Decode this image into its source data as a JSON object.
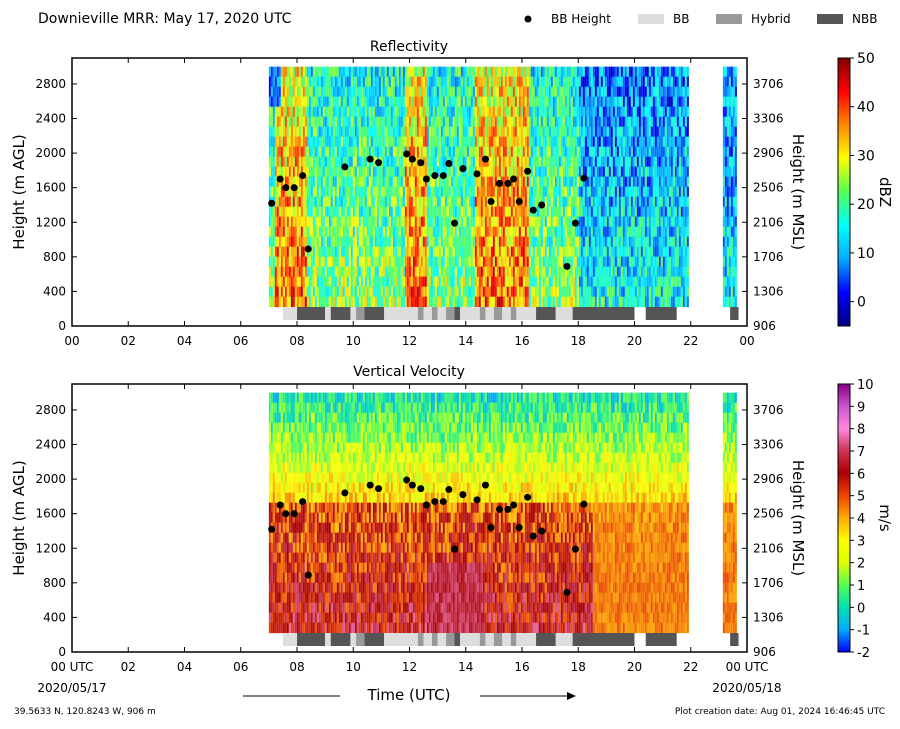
{
  "page": {
    "title": "Downieville MRR:  May 17, 2020 UTC",
    "footer_left": "39.5633 N, 120.8243 W, 906 m",
    "footer_right": "Plot creation date: Aug 01, 2024 16:46:45 UTC",
    "xaxis_title": "Time (UTC)",
    "x_start_date": "2020/05/17",
    "x_end_date": "2020/05/18"
  },
  "legend": [
    {
      "label": "BB Height",
      "kind": "dot",
      "color": "#000000"
    },
    {
      "label": "BB",
      "kind": "patch",
      "color": "#dddddd"
    },
    {
      "label": "Hybrid",
      "kind": "patch",
      "color": "#999999"
    },
    {
      "label": "NBB",
      "kind": "patch",
      "color": "#555555"
    }
  ],
  "chart_data": [
    {
      "type": "heatmap",
      "title": "Reflectivity",
      "ylabel": "Height (m AGL)",
      "ylabel_right": "Height (m MSL)",
      "xlim": [
        0,
        24
      ],
      "ylim": [
        0,
        3100
      ],
      "x_ticks": [
        "00",
        "02",
        "04",
        "06",
        "08",
        "10",
        "12",
        "14",
        "16",
        "18",
        "20",
        "22",
        "00"
      ],
      "y_ticks": [
        0,
        400,
        800,
        1200,
        1600,
        2000,
        2400,
        2800
      ],
      "y_ticks_right": [
        906,
        1306,
        1706,
        2106,
        2506,
        2906,
        3306,
        3706
      ],
      "colorbar": {
        "label": "dBZ",
        "range": [
          -5,
          50
        ],
        "ticks": [
          "0",
          "10",
          "20",
          "30",
          "40",
          "50"
        ],
        "stops": [
          "#00007f",
          "#0000ff",
          "#00aaff",
          "#00ffff",
          "#55ff55",
          "#ffff00",
          "#ff8800",
          "#ff0000",
          "#7f0000"
        ]
      },
      "bb_height": [
        [
          7.1,
          1420
        ],
        [
          7.4,
          1700
        ],
        [
          7.6,
          1600
        ],
        [
          7.9,
          1600
        ],
        [
          8.2,
          1740
        ],
        [
          8.4,
          890
        ],
        [
          9.7,
          1840
        ],
        [
          10.6,
          1930
        ],
        [
          10.9,
          1890
        ],
        [
          11.9,
          1990
        ],
        [
          12.1,
          1930
        ],
        [
          12.4,
          1890
        ],
        [
          12.6,
          1700
        ],
        [
          12.9,
          1740
        ],
        [
          13.2,
          1740
        ],
        [
          13.4,
          1880
        ],
        [
          13.6,
          1190
        ],
        [
          13.9,
          1820
        ],
        [
          14.4,
          1760
        ],
        [
          14.7,
          1930
        ],
        [
          14.9,
          1440
        ],
        [
          15.2,
          1650
        ],
        [
          15.5,
          1650
        ],
        [
          15.7,
          1700
        ],
        [
          15.9,
          1440
        ],
        [
          16.2,
          1790
        ],
        [
          16.4,
          1340
        ],
        [
          16.7,
          1400
        ],
        [
          17.6,
          690
        ],
        [
          17.9,
          1190
        ],
        [
          18.2,
          1710
        ]
      ],
      "bb_segments": [
        [
          7.5,
          8.0,
          "BB"
        ],
        [
          8.0,
          9.0,
          "NBB"
        ],
        [
          9.0,
          9.2,
          "BB"
        ],
        [
          9.2,
          9.9,
          "NBB"
        ],
        [
          9.9,
          10.1,
          "BB"
        ],
        [
          10.1,
          10.4,
          "Hybrid"
        ],
        [
          10.4,
          11.1,
          "NBB"
        ],
        [
          11.1,
          12.3,
          "BB"
        ],
        [
          12.3,
          12.5,
          "Hybrid"
        ],
        [
          12.5,
          12.8,
          "BB"
        ],
        [
          12.8,
          13.0,
          "Hybrid"
        ],
        [
          13.0,
          13.3,
          "BB"
        ],
        [
          13.3,
          13.6,
          "Hybrid"
        ],
        [
          13.6,
          13.8,
          "NBB"
        ],
        [
          13.8,
          14.5,
          "BB"
        ],
        [
          14.5,
          14.7,
          "Hybrid"
        ],
        [
          14.7,
          15.0,
          "BB"
        ],
        [
          15.0,
          15.3,
          "Hybrid"
        ],
        [
          15.3,
          15.6,
          "BB"
        ],
        [
          15.6,
          15.8,
          "Hybrid"
        ],
        [
          15.8,
          16.5,
          "BB"
        ],
        [
          16.5,
          17.2,
          "NBB"
        ],
        [
          17.2,
          17.8,
          "BB"
        ],
        [
          17.8,
          20.0,
          "NBB"
        ],
        [
          20.4,
          21.5,
          "NBB"
        ],
        [
          23.4,
          23.7,
          "NBB"
        ]
      ],
      "data_extent": {
        "x": [
          7.0,
          23.6
        ],
        "y": [
          300,
          3000
        ]
      }
    },
    {
      "type": "heatmap",
      "title": "Vertical Velocity",
      "ylabel": "Height (m AGL)",
      "ylabel_right": "Height (m MSL)",
      "xlim": [
        0,
        24
      ],
      "ylim": [
        0,
        3100
      ],
      "x_ticks": [
        "00 UTC",
        "02",
        "04",
        "06",
        "08",
        "10",
        "12",
        "14",
        "16",
        "18",
        "20",
        "22",
        "00 UTC"
      ],
      "y_ticks": [
        0,
        400,
        800,
        1200,
        1600,
        2000,
        2400,
        2800
      ],
      "y_ticks_right": [
        906,
        1306,
        1706,
        2106,
        2506,
        2906,
        3306,
        3706
      ],
      "colorbar": {
        "label": "m/s",
        "range": [
          -2,
          10
        ],
        "ticks": [
          "-2",
          "-1",
          "0",
          "1",
          "2",
          "3",
          "4",
          "5",
          "6",
          "7",
          "8",
          "9",
          "10"
        ],
        "stops": [
          "#0000ff",
          "#00aaff",
          "#00e0b0",
          "#55ff55",
          "#ddff00",
          "#ffff00",
          "#ffaa00",
          "#ee4400",
          "#aa0000",
          "#cc3355",
          "#ff88dd",
          "#cc55cc",
          "#880088"
        ]
      },
      "bb_height": [
        [
          7.1,
          1420
        ],
        [
          7.4,
          1700
        ],
        [
          7.6,
          1600
        ],
        [
          7.9,
          1600
        ],
        [
          8.2,
          1740
        ],
        [
          8.4,
          890
        ],
        [
          9.7,
          1840
        ],
        [
          10.6,
          1930
        ],
        [
          10.9,
          1890
        ],
        [
          11.9,
          1990
        ],
        [
          12.1,
          1930
        ],
        [
          12.4,
          1890
        ],
        [
          12.6,
          1700
        ],
        [
          12.9,
          1740
        ],
        [
          13.2,
          1740
        ],
        [
          13.4,
          1880
        ],
        [
          13.6,
          1190
        ],
        [
          13.9,
          1820
        ],
        [
          14.4,
          1760
        ],
        [
          14.7,
          1930
        ],
        [
          14.9,
          1440
        ],
        [
          15.2,
          1650
        ],
        [
          15.5,
          1650
        ],
        [
          15.7,
          1700
        ],
        [
          15.9,
          1440
        ],
        [
          16.2,
          1790
        ],
        [
          16.4,
          1340
        ],
        [
          16.7,
          1400
        ],
        [
          17.6,
          690
        ],
        [
          17.9,
          1190
        ],
        [
          18.2,
          1710
        ]
      ],
      "bb_segments": [
        [
          7.5,
          8.0,
          "BB"
        ],
        [
          8.0,
          9.0,
          "NBB"
        ],
        [
          9.0,
          9.2,
          "BB"
        ],
        [
          9.2,
          9.9,
          "NBB"
        ],
        [
          9.9,
          10.1,
          "BB"
        ],
        [
          10.1,
          10.4,
          "Hybrid"
        ],
        [
          10.4,
          11.1,
          "NBB"
        ],
        [
          11.1,
          12.3,
          "BB"
        ],
        [
          12.3,
          12.5,
          "Hybrid"
        ],
        [
          12.5,
          12.8,
          "BB"
        ],
        [
          12.8,
          13.0,
          "Hybrid"
        ],
        [
          13.0,
          13.3,
          "BB"
        ],
        [
          13.3,
          13.6,
          "Hybrid"
        ],
        [
          13.6,
          13.8,
          "NBB"
        ],
        [
          13.8,
          14.5,
          "BB"
        ],
        [
          14.5,
          14.7,
          "Hybrid"
        ],
        [
          14.7,
          15.0,
          "BB"
        ],
        [
          15.0,
          15.3,
          "Hybrid"
        ],
        [
          15.3,
          15.6,
          "BB"
        ],
        [
          15.6,
          15.8,
          "Hybrid"
        ],
        [
          15.8,
          16.5,
          "BB"
        ],
        [
          16.5,
          17.2,
          "NBB"
        ],
        [
          17.2,
          17.8,
          "BB"
        ],
        [
          17.8,
          20.0,
          "NBB"
        ],
        [
          20.4,
          21.5,
          "NBB"
        ],
        [
          23.4,
          23.7,
          "NBB"
        ]
      ],
      "data_extent": {
        "x": [
          7.0,
          23.6
        ],
        "y": [
          300,
          3000
        ]
      }
    }
  ]
}
